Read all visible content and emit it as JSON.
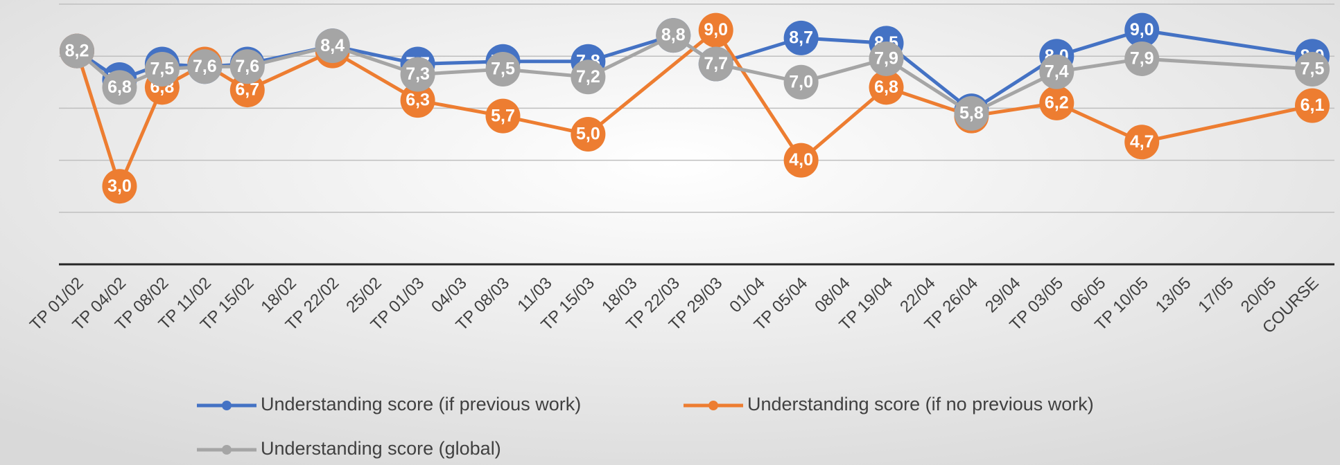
{
  "chart_data": {
    "type": "line",
    "categories": [
      "TP 01/02",
      "TP 04/02",
      "TP 08/02",
      "TP 11/02",
      "TP 15/02",
      "18/02",
      "TP 22/02",
      "25/02",
      "TP 01/03",
      "04/03",
      "TP 08/03",
      "11/03",
      "TP 15/03",
      "18/03",
      "TP 22/03",
      "TP 29/03",
      "01/04",
      "TP 05/04",
      "08/04",
      "TP 19/04",
      "22/04",
      "TP 26/04",
      "29/04",
      "TP 03/05",
      "06/05",
      "TP 10/05",
      "13/05",
      "17/05",
      "20/05",
      "COURSE"
    ],
    "series": [
      {
        "name": "Understanding score (if previous work)",
        "color": "#4472c4",
        "values": [
          8.2,
          7.1,
          7.7,
          7.6,
          7.7,
          null,
          8.4,
          null,
          7.7,
          null,
          7.8,
          null,
          7.8,
          null,
          8.8,
          7.7,
          null,
          8.7,
          null,
          8.5,
          null,
          5.9,
          null,
          8.0,
          null,
          9.0,
          null,
          null,
          null,
          8.0
        ],
        "value_labels": [
          "8,2",
          "7,1",
          "7,7",
          "7,6",
          "7,7",
          null,
          "8,4",
          null,
          "7,7",
          null,
          "7,8",
          null,
          "7,8",
          null,
          "8,8",
          "7,7",
          null,
          "8,7",
          null,
          "8,5",
          null,
          "5,9",
          null,
          "8,0",
          null,
          "9,0",
          null,
          null,
          null,
          "8,0"
        ]
      },
      {
        "name": "Understanding score (if no previous work)",
        "color": "#ed7d31",
        "values": [
          8.2,
          3.0,
          6.8,
          7.7,
          6.7,
          null,
          8.2,
          null,
          6.3,
          null,
          5.7,
          null,
          5.0,
          null,
          null,
          9.0,
          null,
          4.0,
          null,
          6.8,
          null,
          5.7,
          null,
          6.2,
          null,
          4.7,
          null,
          null,
          null,
          6.1
        ],
        "value_labels": [
          "8,2",
          "3,0",
          "6,8",
          "7,7",
          "6,7",
          null,
          "8,2",
          null,
          "6,3",
          null,
          "5,7",
          null,
          "5,0",
          null,
          null,
          "9,0",
          null,
          "4,0",
          null,
          "6,8",
          null,
          "5,7",
          null,
          "6,2",
          null,
          "4,7",
          null,
          null,
          null,
          "6,1"
        ]
      },
      {
        "name": "Understanding score (global)",
        "color": "#a5a5a5",
        "values": [
          8.2,
          6.8,
          7.5,
          7.6,
          7.6,
          null,
          8.4,
          null,
          7.3,
          null,
          7.5,
          null,
          7.2,
          null,
          8.8,
          7.7,
          null,
          7.0,
          null,
          7.9,
          null,
          5.8,
          null,
          7.4,
          null,
          7.9,
          null,
          null,
          null,
          7.5
        ],
        "value_labels": [
          "8,2",
          "6,8",
          "7,5",
          "7,6",
          "7,6",
          null,
          "8,4",
          null,
          "7,3",
          null,
          "7,5",
          null,
          "7,2",
          null,
          "8,8",
          "7,7",
          null,
          "7,0",
          null,
          "7,9",
          null,
          "5,8",
          null,
          "7,4",
          null,
          "7,9",
          null,
          null,
          null,
          "7,5"
        ]
      }
    ],
    "ylim": [
      0,
      10
    ],
    "yticks": [
      0,
      2,
      4,
      6,
      8,
      10
    ],
    "grid": true,
    "span_gaps": true,
    "legend": "bottom"
  }
}
